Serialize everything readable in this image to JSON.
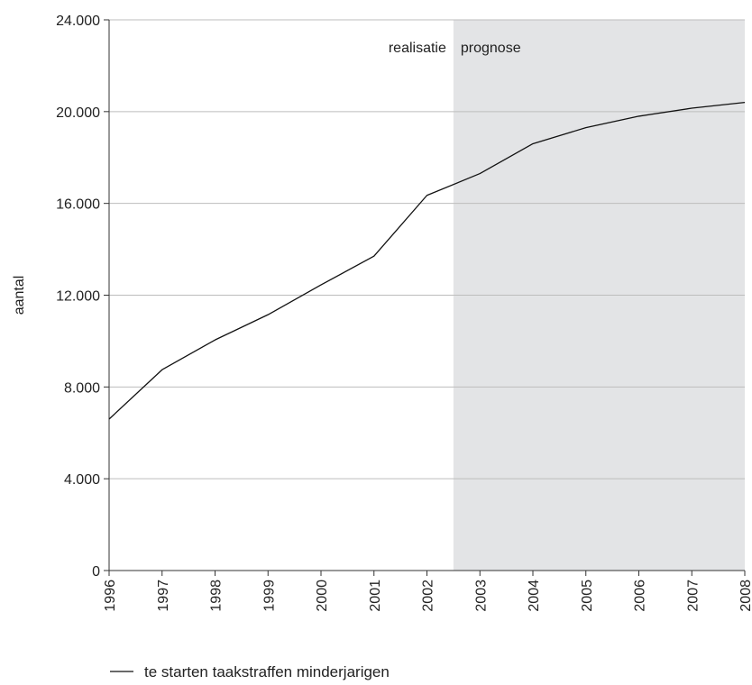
{
  "chart_data": {
    "type": "line",
    "title": "",
    "xlabel": "",
    "ylabel": "aantal",
    "x": [
      "1996",
      "1997",
      "1998",
      "1999",
      "2000",
      "2001",
      "2002",
      "2003",
      "2004",
      "2005",
      "2006",
      "2007",
      "2008"
    ],
    "series": [
      {
        "name": "te starten taakstraffen minderjarigen",
        "values": [
          6600,
          8750,
          10050,
          11150,
          12450,
          13700,
          16350,
          17300,
          18600,
          19300,
          19800,
          20150,
          20400
        ]
      }
    ],
    "ylim": [
      0,
      24000
    ],
    "yticks": [
      0,
      4000,
      8000,
      12000,
      16000,
      20000,
      24000
    ],
    "ytick_labels": [
      "0",
      "4.000",
      "8.000",
      "12.000",
      "16.000",
      "20.000",
      "24.000"
    ],
    "grid": "horizontal",
    "legend_position": "bottom-left",
    "annotations": {
      "realisatie_label": "realisatie",
      "prognose_label": "prognose",
      "prognose_start": 2002.5,
      "prognose_end": 2008
    },
    "colors": {
      "line": "#111111",
      "prognose_shade": "#e3e4e6",
      "grid": "#bdbdbd",
      "axis": "#333333"
    }
  }
}
